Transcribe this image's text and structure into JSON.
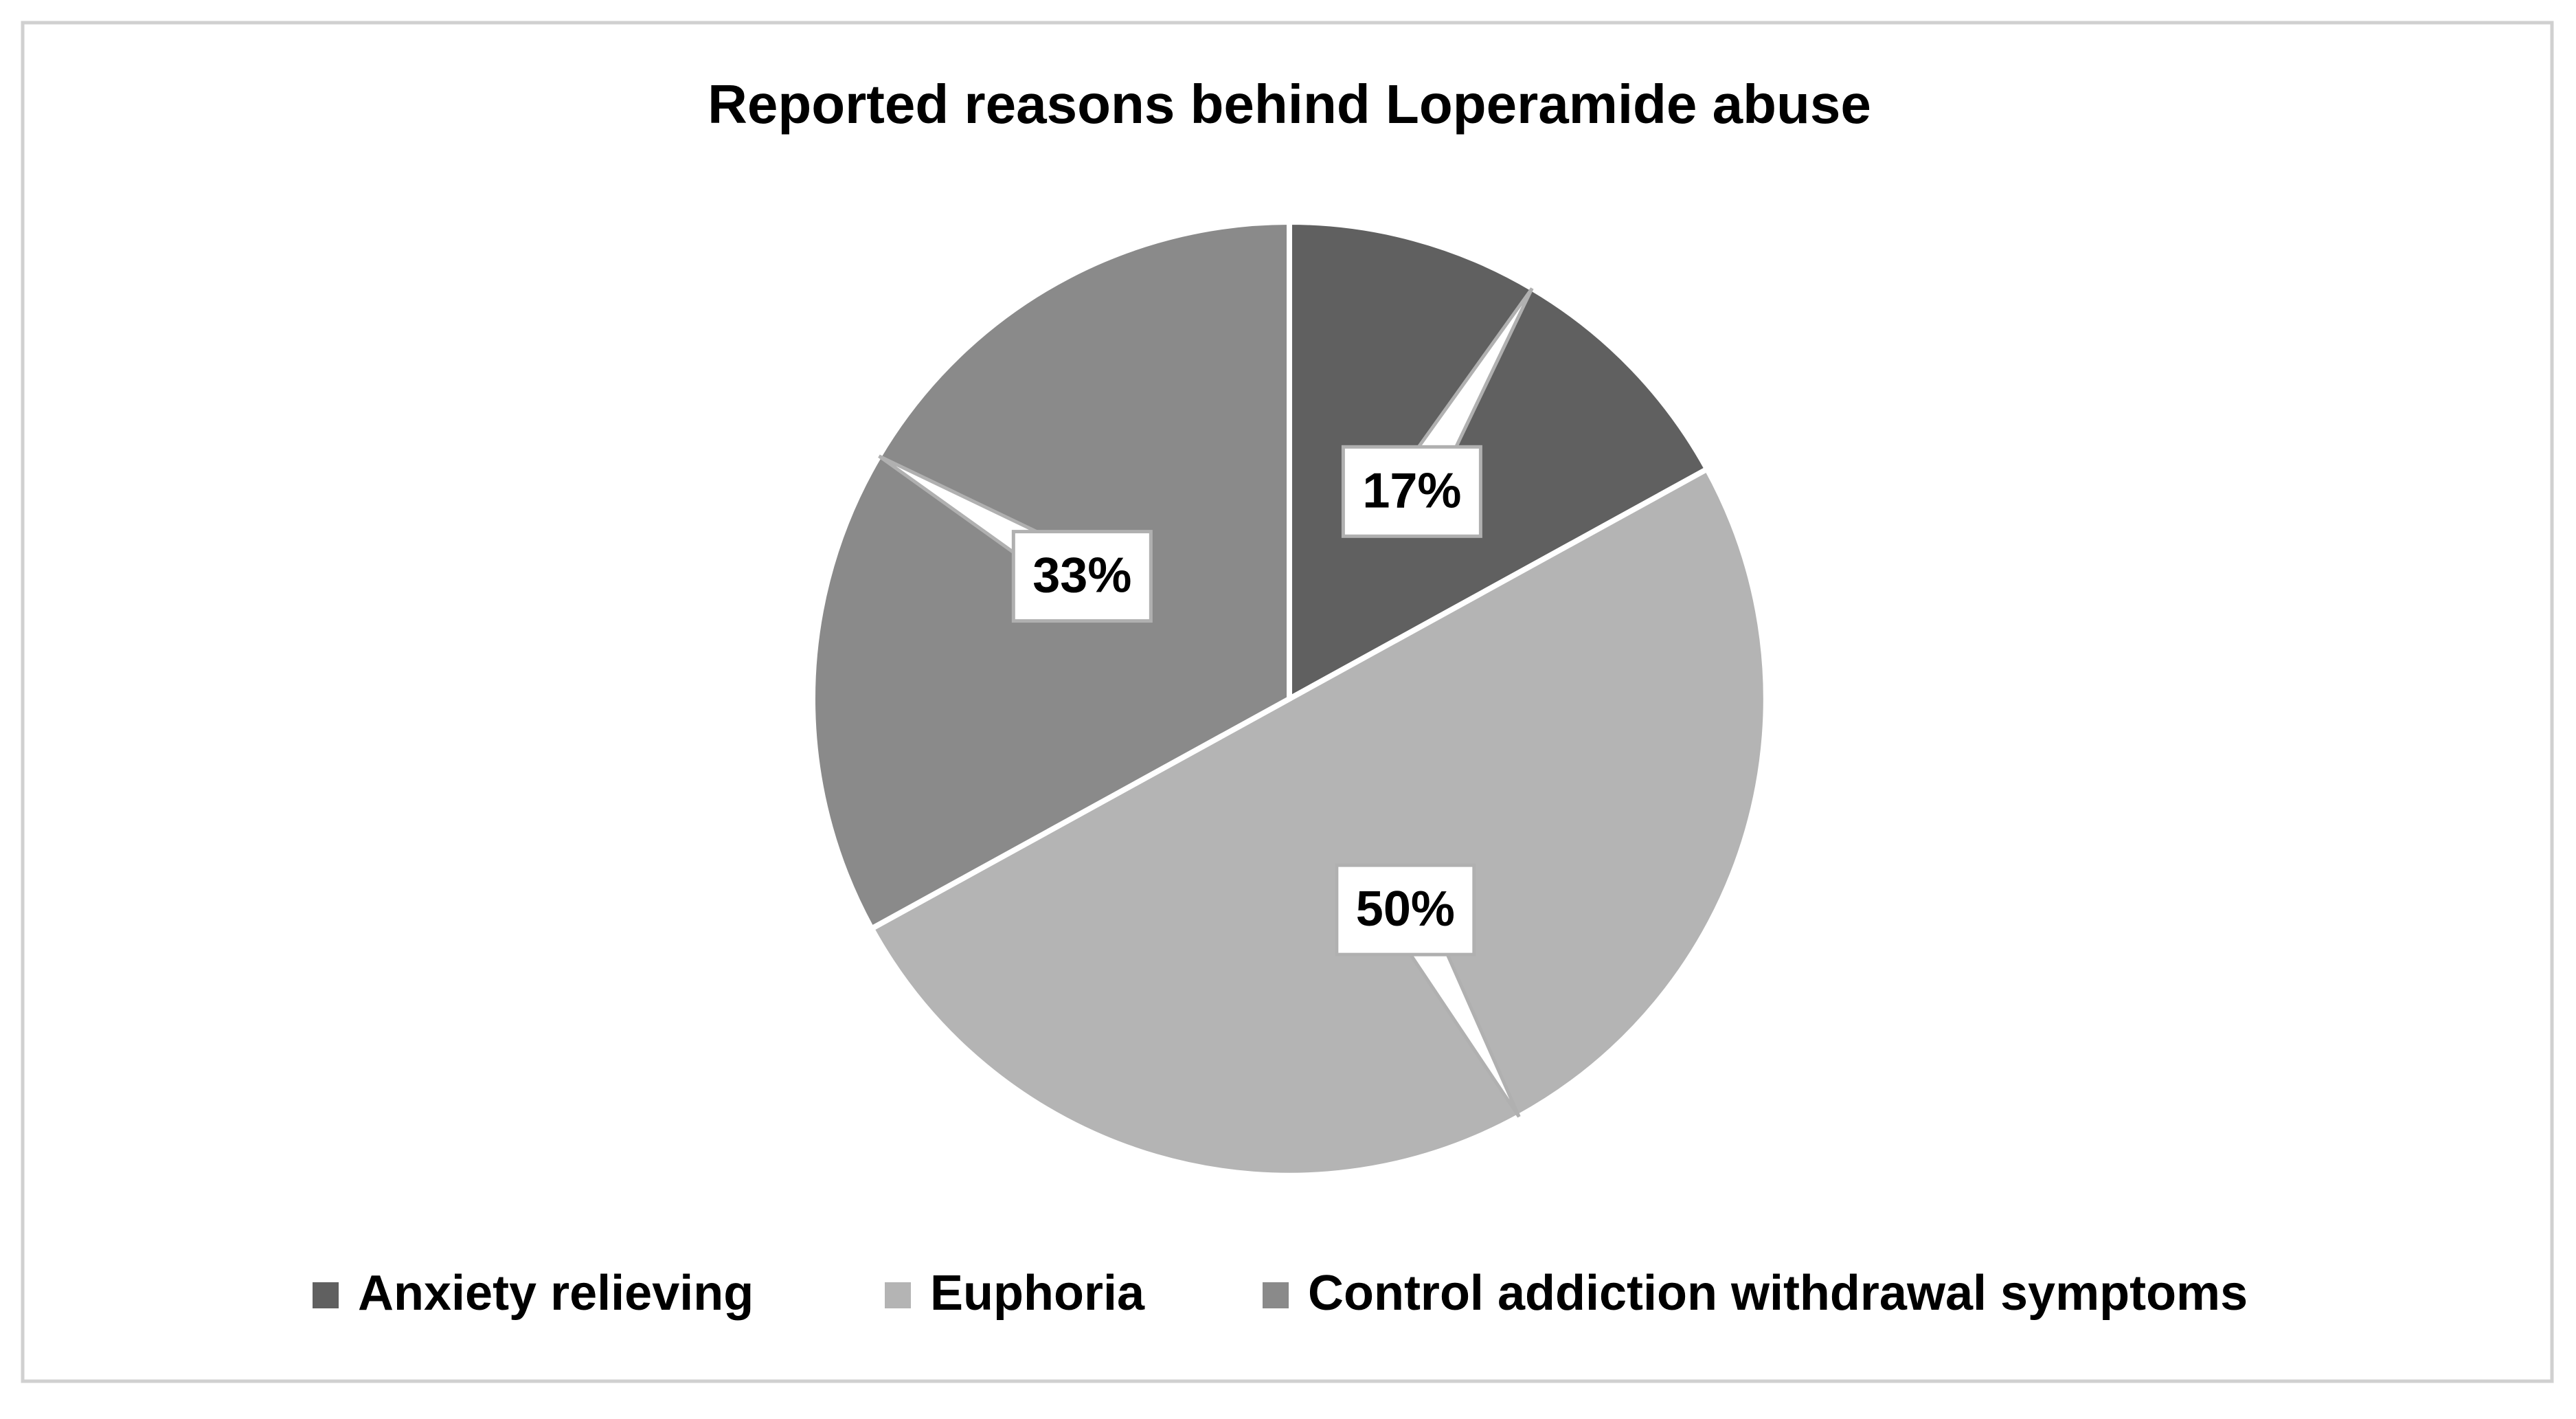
{
  "chart_data": {
    "type": "pie",
    "title": "Reported reasons behind Loperamide abuse",
    "categories": [
      "Anxiety relieving",
      "Euphoria",
      "Control addiction withdrawal symptoms"
    ],
    "values": [
      17,
      50,
      33
    ],
    "value_labels": [
      "17%",
      "50%",
      "33%"
    ],
    "colors": [
      "#606060",
      "#b4b4b4",
      "#8a8a8a"
    ],
    "legend": "bottom"
  }
}
